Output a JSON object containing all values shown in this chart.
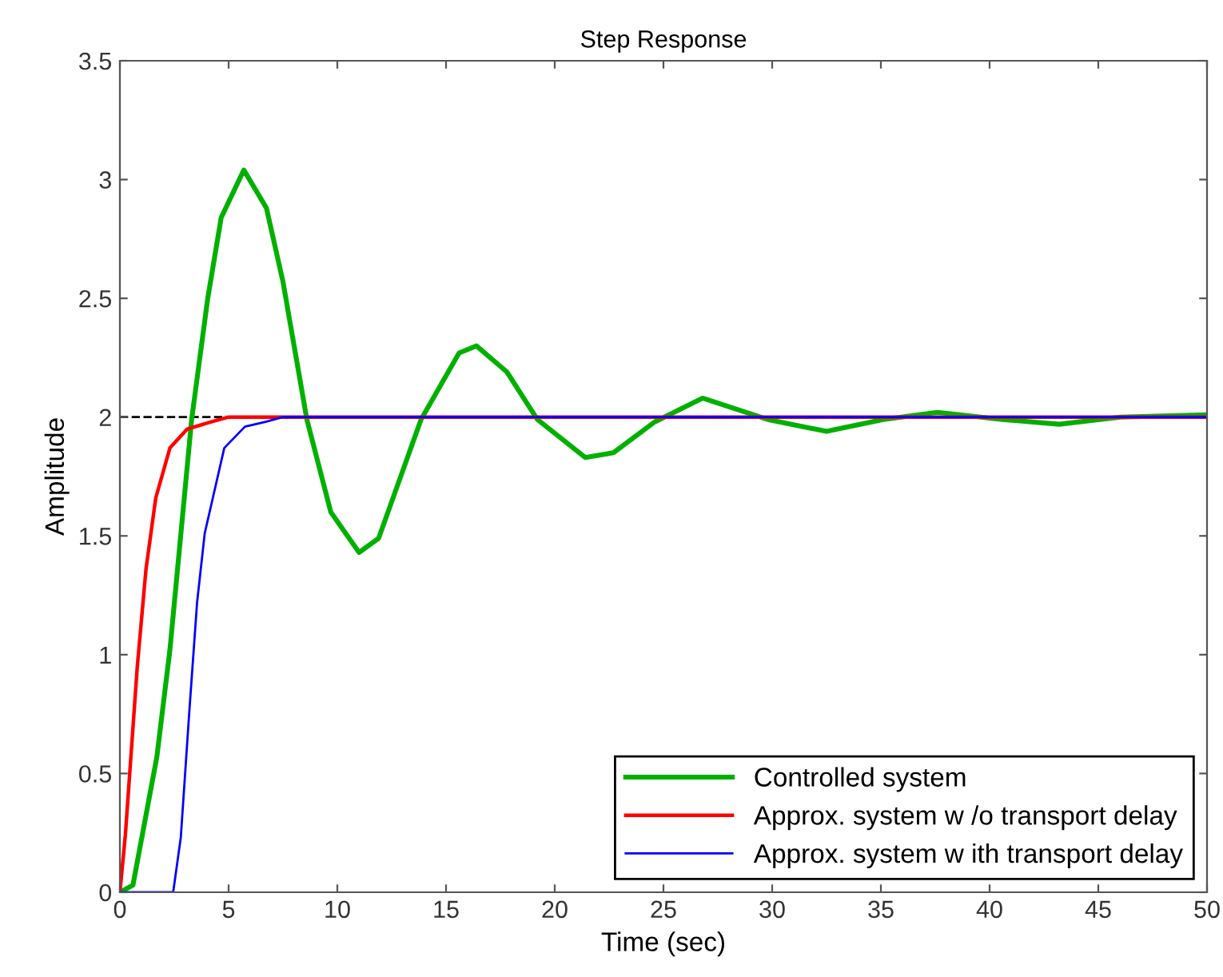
{
  "chart_data": {
    "type": "line",
    "title": "Step Response",
    "xlabel": "Time (sec)",
    "ylabel": "Amplitude",
    "xlim": [
      0,
      50
    ],
    "ylim": [
      0,
      3.5
    ],
    "xticks": [
      0,
      5,
      10,
      15,
      20,
      25,
      30,
      35,
      40,
      45,
      50
    ],
    "yticks": [
      0,
      0.5,
      1,
      1.5,
      2,
      2.5,
      3,
      3.5
    ],
    "grid": false,
    "legend": "bottom right",
    "marker": "none",
    "line_style": "solid",
    "ref_lines": [
      {
        "axis": "y",
        "value": 2,
        "color": "#000000",
        "line_style": "dashed"
      }
    ],
    "series": [
      {
        "name": "Controlled system",
        "color": "#00b000",
        "x": [
          0,
          0.6,
          1.7,
          2.3,
          3.3,
          4.04,
          4.66,
          5.7,
          6.74,
          7.5,
          8.6,
          9.7,
          11.0,
          11.9,
          13.85,
          15.6,
          16.4,
          17.8,
          19.2,
          21.4,
          22.7,
          24.6,
          26.8,
          29.8,
          32.5,
          35.1,
          37.6,
          40.6,
          43.2,
          46,
          50
        ],
        "values": [
          0,
          0.03,
          0.57,
          1.02,
          1.99,
          2.5,
          2.84,
          3.04,
          2.88,
          2.57,
          1.99,
          1.6,
          1.43,
          1.49,
          1.99,
          2.27,
          2.3,
          2.19,
          1.99,
          1.83,
          1.85,
          1.98,
          2.08,
          1.99,
          1.94,
          1.99,
          2.02,
          1.99,
          1.97,
          2.0,
          2.01
        ]
      },
      {
        "name": "Approx. system w /o transport delay",
        "color": "#ff0000",
        "x": [
          0,
          0.25,
          0.8,
          1.2,
          1.65,
          2.3,
          3.1,
          4.2,
          5,
          50
        ],
        "values": [
          0,
          0.24,
          0.95,
          1.36,
          1.66,
          1.87,
          1.95,
          1.98,
          2,
          2
        ]
      },
      {
        "name": "Approx. system w ith transport delay",
        "color": "#0000ff",
        "x": [
          0,
          2.45,
          2.8,
          3.2,
          3.55,
          3.9,
          4.8,
          5.75,
          6.7,
          7.5,
          50
        ],
        "values": [
          0,
          0,
          0.23,
          0.77,
          1.22,
          1.51,
          1.87,
          1.96,
          1.98,
          2,
          2
        ]
      }
    ]
  }
}
